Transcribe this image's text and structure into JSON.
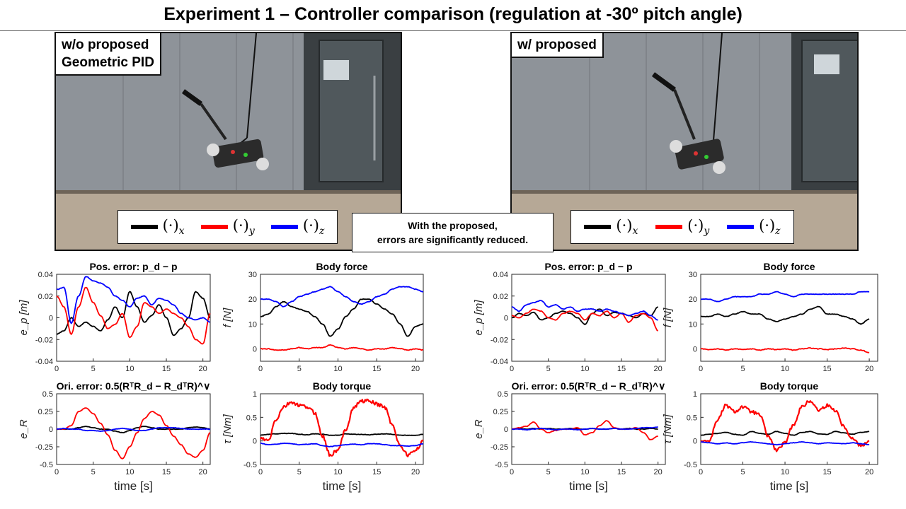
{
  "title": "Experiment 1 – Controller comparison (regulation at -30º pitch angle)",
  "panels": {
    "left": {
      "label_line1": "w/o proposed",
      "label_line2": "Geometric PID"
    },
    "right": {
      "label_line1": "w/ proposed"
    }
  },
  "legend": {
    "items": [
      {
        "base": "(·)",
        "sub": "x",
        "color": "#000000"
      },
      {
        "base": "(·)",
        "sub": "y",
        "color": "#ff0000"
      },
      {
        "base": "(·)",
        "sub": "z",
        "color": "#0000ff"
      }
    ]
  },
  "callout": {
    "line1": "With the proposed,",
    "line2": "errors are significantly reduced."
  },
  "colors": {
    "x": "#000000",
    "y": "#ff0000",
    "z": "#0000ff"
  },
  "chart_data": [
    {
      "id": "pos_wo",
      "type": "line",
      "title": "Pos. error: p_d − p",
      "xlabel": "",
      "ylabel": "e_p [m]",
      "xlim": [
        0,
        21
      ],
      "ylim": [
        -0.04,
        0.04
      ],
      "yticks": [
        "0.04",
        "0.02",
        "0",
        "-0.02",
        "-0.04"
      ],
      "xticks": [
        "0",
        "5",
        "10",
        "15",
        "20"
      ],
      "x": [
        0,
        1,
        2,
        3,
        4,
        5,
        6,
        7,
        8,
        9,
        10,
        11,
        12,
        13,
        14,
        15,
        16,
        17,
        18,
        19,
        20,
        21
      ],
      "series": [
        {
          "values": [
            -0.015,
            -0.012,
            0.0,
            -0.008,
            -0.004,
            -0.008,
            -0.012,
            -0.002,
            0.01,
            0.0,
            0.024,
            0.01,
            -0.004,
            0.002,
            0.012,
            0.0,
            -0.016,
            -0.01,
            0.0,
            0.024,
            0.018,
            0.0
          ]
        },
        {
          "values": [
            0.02,
            0.01,
            -0.015,
            0.01,
            0.028,
            0.014,
            0.002,
            -0.01,
            -0.006,
            0.004,
            -0.018,
            -0.008,
            0.014,
            0.01,
            0.004,
            0.008,
            0.004,
            0.0,
            -0.008,
            -0.02,
            -0.024,
            0.004
          ]
        },
        {
          "values": [
            0.026,
            0.028,
            -0.005,
            0.02,
            0.038,
            0.034,
            0.032,
            0.028,
            0.02,
            0.016,
            0.01,
            0.018,
            0.02,
            0.012,
            0.018,
            0.016,
            0.012,
            0.004,
            0.0,
            -0.002,
            0.0,
            -0.004
          ]
        }
      ]
    },
    {
      "id": "force_wo",
      "type": "line",
      "title": "Body force",
      "xlabel": "",
      "ylabel": "f [N]",
      "xlim": [
        0,
        21
      ],
      "ylim": [
        -5,
        30
      ],
      "yticks": [
        "30",
        "20",
        "10",
        "0"
      ],
      "xticks": [
        "0",
        "5",
        "10",
        "15",
        "20"
      ],
      "x": [
        0,
        1,
        2,
        3,
        4,
        5,
        6,
        7,
        8,
        9,
        10,
        11,
        12,
        13,
        14,
        15,
        16,
        17,
        18,
        19,
        20,
        21
      ],
      "series": [
        {
          "values": [
            13,
            14,
            17,
            19,
            17,
            16,
            15,
            13,
            10,
            5,
            8,
            13,
            16,
            20,
            20,
            18,
            16,
            14,
            10,
            5,
            9,
            10
          ]
        },
        {
          "values": [
            0,
            0,
            -0.5,
            -0.5,
            0,
            0.5,
            0,
            0.5,
            0.5,
            1.5,
            0.5,
            0,
            0.5,
            0,
            -0.5,
            0,
            0,
            0.5,
            0,
            -0.5,
            0,
            -0.5
          ]
        },
        {
          "values": [
            20,
            20,
            19,
            17,
            19,
            21,
            22,
            23,
            24,
            25,
            23,
            21,
            19,
            18,
            19,
            21,
            22,
            24,
            25,
            25,
            24,
            23
          ]
        }
      ]
    },
    {
      "id": "ori_wo",
      "type": "line",
      "title": "Ori. error: 0.5(RᵀR_d − R_dᵀR)^∨",
      "xlabel": "time [s]",
      "ylabel": "e_R",
      "xlim": [
        0,
        21
      ],
      "ylim": [
        -0.5,
        0.5
      ],
      "yticks": [
        "0.5",
        "0.25",
        "0",
        "-0.25",
        "-0.5"
      ],
      "xticks": [
        "0",
        "5",
        "10",
        "15",
        "20"
      ],
      "x": [
        0,
        1,
        2,
        3,
        4,
        5,
        6,
        7,
        8,
        9,
        10,
        11,
        12,
        13,
        14,
        15,
        16,
        17,
        18,
        19,
        20,
        21
      ],
      "series": [
        {
          "values": [
            0,
            0,
            0,
            0.02,
            0.04,
            0.02,
            0,
            0,
            -0.03,
            -0.05,
            -0.02,
            0.02,
            0.04,
            0.02,
            0,
            0,
            0,
            0,
            0.02,
            0.03,
            0.02,
            0
          ]
        },
        {
          "values": [
            0,
            0,
            0.05,
            0.25,
            0.3,
            0.22,
            0.08,
            -0.08,
            -0.3,
            -0.42,
            -0.25,
            -0.05,
            0.15,
            0.25,
            0.2,
            0.05,
            -0.1,
            -0.22,
            -0.35,
            -0.4,
            -0.3,
            -0.05
          ]
        },
        {
          "values": [
            0,
            0.01,
            0,
            0,
            -0.02,
            -0.02,
            -0.03,
            -0.02,
            0,
            0.01,
            0,
            -0.02,
            -0.02,
            0,
            0.02,
            0.02,
            0.02,
            0.01,
            0,
            0,
            0,
            0
          ]
        }
      ]
    },
    {
      "id": "torque_wo",
      "type": "line",
      "title": "Body torque",
      "xlabel": "time [s]",
      "ylabel": "τ [Nm]",
      "xlim": [
        0,
        21
      ],
      "ylim": [
        -0.5,
        1
      ],
      "yticks": [
        "1",
        "0.5",
        "0",
        "-0.5"
      ],
      "xticks": [
        "0",
        "5",
        "10",
        "15",
        "20"
      ],
      "x": [
        0,
        1,
        2,
        3,
        4,
        5,
        6,
        7,
        8,
        9,
        10,
        11,
        12,
        13,
        14,
        15,
        16,
        17,
        18,
        19,
        20,
        21
      ],
      "series": [
        {
          "values": [
            0.12,
            0.14,
            0.15,
            0.16,
            0.16,
            0.14,
            0.13,
            0.15,
            0.14,
            0.12,
            0.12,
            0.15,
            0.14,
            0.14,
            0.13,
            0.14,
            0.15,
            0.14,
            0.12,
            0.12,
            0.12,
            0.14
          ]
        },
        {
          "values": [
            0.05,
            0.0,
            0.45,
            0.72,
            0.82,
            0.75,
            0.72,
            0.6,
            0.1,
            -0.3,
            -0.2,
            0.25,
            0.7,
            0.85,
            0.85,
            0.78,
            0.72,
            0.35,
            -0.1,
            -0.3,
            -0.2,
            0.0
          ]
        },
        {
          "values": [
            -0.05,
            -0.08,
            -0.07,
            -0.05,
            -0.06,
            -0.08,
            -0.07,
            -0.06,
            -0.1,
            -0.12,
            -0.1,
            -0.08,
            -0.07,
            -0.08,
            -0.06,
            -0.06,
            -0.08,
            -0.1,
            -0.1,
            -0.11,
            -0.1,
            -0.06
          ]
        }
      ]
    },
    {
      "id": "pos_w",
      "type": "line",
      "title": "Pos. error: p_d − p",
      "xlabel": "",
      "ylabel": "e_p [m]",
      "xlim": [
        0,
        21
      ],
      "ylim": [
        -0.04,
        0.04
      ],
      "yticks": [
        "0.04",
        "0.02",
        "0",
        "-0.02",
        "-0.04"
      ],
      "xticks": [
        "0",
        "5",
        "10",
        "15",
        "20"
      ],
      "x": [
        0,
        1,
        2,
        3,
        4,
        5,
        6,
        7,
        8,
        9,
        10,
        11,
        12,
        13,
        14,
        15,
        16,
        17,
        18,
        19,
        20
      ],
      "series": [
        {
          "values": [
            0.0,
            0.004,
            0.002,
            0.005,
            -0.002,
            0.0,
            0.004,
            0.006,
            0.004,
            0.0,
            -0.006,
            0.004,
            0.008,
            0.002,
            0.005,
            0.004,
            0.002,
            0.0,
            0.004,
            0.002,
            0.01
          ]
        },
        {
          "values": [
            0.002,
            0.0,
            0.004,
            0.008,
            0.006,
            0.0,
            -0.002,
            0.004,
            0.006,
            0.004,
            -0.002,
            0.004,
            0.002,
            0.006,
            0.0,
            0.004,
            -0.004,
            0.002,
            0.004,
            0.0,
            -0.012
          ]
        },
        {
          "values": [
            0.01,
            0.006,
            0.012,
            0.014,
            0.016,
            0.01,
            0.012,
            0.008,
            0.01,
            0.006,
            0.008,
            0.008,
            0.006,
            0.008,
            0.006,
            0.004,
            0.002,
            0.004,
            0.006,
            0.002,
            -0.002
          ]
        }
      ]
    },
    {
      "id": "force_w",
      "type": "line",
      "title": "Body force",
      "xlabel": "",
      "ylabel": "f [N]",
      "xlim": [
        0,
        21
      ],
      "ylim": [
        -5,
        30
      ],
      "yticks": [
        "30",
        "20",
        "10",
        "0"
      ],
      "xticks": [
        "0",
        "5",
        "10",
        "15",
        "20"
      ],
      "x": [
        0,
        1,
        2,
        3,
        4,
        5,
        6,
        7,
        8,
        9,
        10,
        11,
        12,
        13,
        14,
        15,
        16,
        17,
        18,
        19,
        20
      ],
      "series": [
        {
          "values": [
            13,
            13,
            14,
            13,
            14,
            15,
            14,
            14,
            12,
            11,
            12,
            13,
            14,
            16,
            17,
            14,
            14,
            13,
            12,
            10,
            12
          ]
        },
        {
          "values": [
            0,
            -0.3,
            0,
            -0.5,
            0,
            -0.3,
            0,
            -0.5,
            0,
            -0.3,
            0,
            -0.5,
            0,
            0.3,
            0,
            -0.3,
            0,
            0.3,
            0,
            -0.5,
            -1.5
          ]
        },
        {
          "values": [
            20,
            20,
            19,
            20,
            21,
            21,
            21,
            22,
            22,
            23,
            22,
            21,
            22,
            22,
            22,
            22,
            22,
            22,
            22,
            23,
            23
          ]
        }
      ]
    },
    {
      "id": "ori_w",
      "type": "line",
      "title": "Ori. error: 0.5(RᵀR_d − R_dᵀR)^∨",
      "xlabel": "time [s]",
      "ylabel": "e_R",
      "xlim": [
        0,
        21
      ],
      "ylim": [
        -0.5,
        0.5
      ],
      "yticks": [
        "0.5",
        "0.25",
        "0",
        "-0.25",
        "-0.5"
      ],
      "xticks": [
        "0",
        "5",
        "10",
        "15",
        "20"
      ],
      "x": [
        0,
        1,
        2,
        3,
        4,
        5,
        6,
        7,
        8,
        9,
        10,
        11,
        12,
        13,
        14,
        15,
        16,
        17,
        18,
        19,
        20
      ],
      "series": [
        {
          "values": [
            0,
            0.01,
            0.0,
            0.01,
            0.0,
            0.01,
            0.0,
            0.0,
            0.01,
            0.0,
            0.0,
            0.01,
            0.0,
            0.0,
            0.01,
            0.0,
            0.01,
            0.0,
            0.0,
            0.01,
            0.0
          ]
        },
        {
          "values": [
            0,
            0.02,
            0.04,
            0.1,
            0.0,
            -0.05,
            -0.02,
            0.0,
            0.0,
            0.02,
            -0.08,
            -0.05,
            0.05,
            0.12,
            0.02,
            0.0,
            0.0,
            0.02,
            -0.05,
            -0.15,
            -0.1
          ]
        },
        {
          "values": [
            0,
            0,
            -0.01,
            0,
            0.01,
            0,
            -0.01,
            0,
            0,
            -0.01,
            0,
            0.01,
            0,
            0,
            0.01,
            0,
            0,
            0.01,
            0.02,
            0.02,
            0.03
          ]
        }
      ]
    },
    {
      "id": "torque_w",
      "type": "line",
      "title": "Body torque",
      "xlabel": "time [s]",
      "ylabel": "τ [Nm]",
      "xlim": [
        0,
        21
      ],
      "ylim": [
        -0.5,
        1
      ],
      "yticks": [
        "1",
        "0.5",
        "0",
        "-0.5"
      ],
      "xticks": [
        "0",
        "5",
        "10",
        "15",
        "20"
      ],
      "x": [
        0,
        1,
        2,
        3,
        4,
        5,
        6,
        7,
        8,
        9,
        10,
        11,
        12,
        13,
        14,
        15,
        16,
        17,
        18,
        19,
        20
      ],
      "series": [
        {
          "values": [
            0.12,
            0.14,
            0.16,
            0.18,
            0.14,
            0.12,
            0.2,
            0.16,
            0.14,
            0.2,
            0.16,
            0.12,
            0.18,
            0.2,
            0.15,
            0.14,
            0.2,
            0.17,
            0.14,
            0.18,
            0.2
          ]
        },
        {
          "values": [
            0.0,
            0.0,
            0.45,
            0.75,
            0.62,
            0.72,
            0.62,
            0.55,
            0.1,
            -0.2,
            -0.05,
            0.35,
            0.72,
            0.85,
            0.65,
            0.75,
            0.65,
            0.3,
            0.05,
            -0.1,
            0.0
          ]
        },
        {
          "values": [
            -0.02,
            -0.04,
            -0.06,
            -0.04,
            -0.06,
            -0.04,
            -0.02,
            -0.04,
            -0.06,
            -0.08,
            -0.06,
            -0.04,
            -0.02,
            -0.04,
            -0.06,
            -0.04,
            -0.05,
            -0.06,
            -0.04,
            -0.06,
            -0.08
          ]
        }
      ]
    }
  ]
}
